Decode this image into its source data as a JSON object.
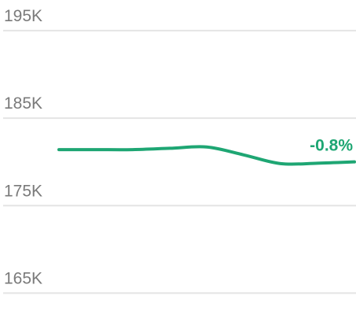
{
  "chart_data": {
    "type": "line",
    "categories": [
      null,
      null,
      null,
      null,
      null,
      null,
      null,
      null,
      null
    ],
    "series": [
      {
        "color": "#1ea673",
        "values": [
          181400,
          181400,
          181400,
          181550,
          181700,
          180800,
          179800,
          179850,
          180000
        ]
      }
    ],
    "annotation": "-0.8%",
    "ylim": [
      160900,
      198500
    ],
    "yticks": [
      {
        "value": 195000,
        "label": "195K"
      },
      {
        "value": 185000,
        "label": "185K"
      },
      {
        "value": 175000,
        "label": "175K"
      },
      {
        "value": 165000,
        "label": "165K"
      }
    ],
    "grid": true
  }
}
